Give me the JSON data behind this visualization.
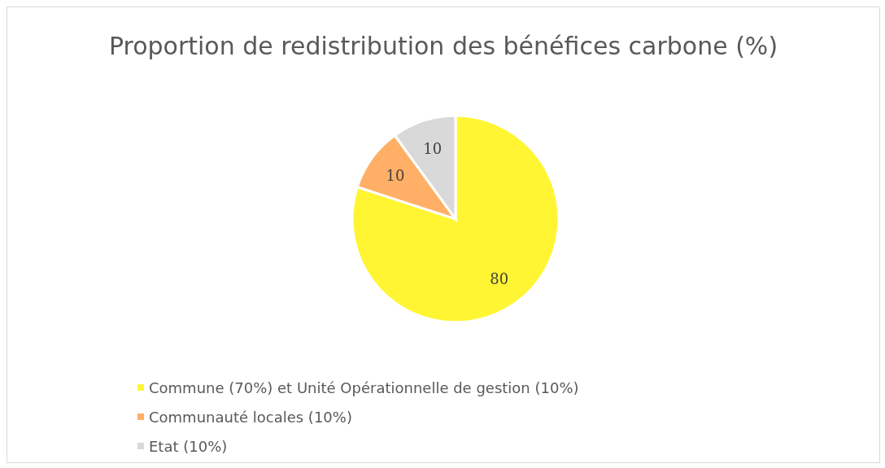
{
  "chart_data": {
    "type": "pie",
    "title": "Proportion de redistribution des bénéfices carbone (%)",
    "categories": [
      "Commune (70%) et Unité Opérationnelle de gestion (10%)",
      "Communauté locales (10%)",
      "Etat (10%)"
    ],
    "values": [
      80,
      10,
      10
    ],
    "colors": [
      "#fff533",
      "#ffb066",
      "#d9d9d9"
    ],
    "data_labels": true,
    "legend": "bottom"
  }
}
